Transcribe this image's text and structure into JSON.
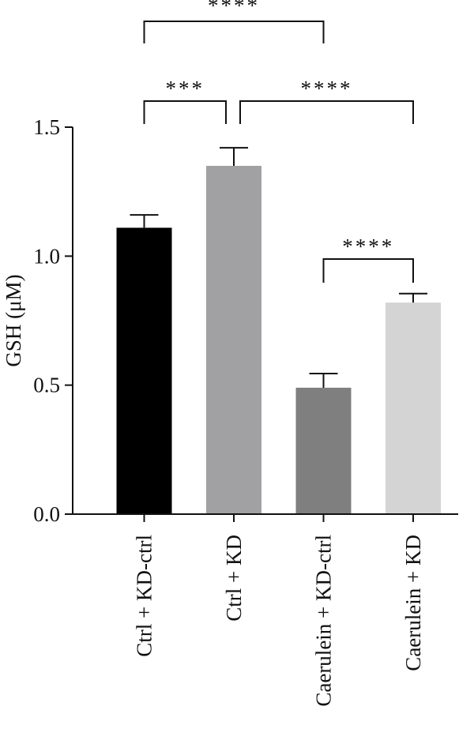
{
  "chart_data": {
    "type": "bar",
    "ylabel": "GSH (μM)",
    "ylim": [
      0,
      1.5
    ],
    "yticks": [
      0.0,
      0.5,
      1.0,
      1.5
    ],
    "ytick_labels": [
      "0.0",
      "0.5",
      "1.0",
      "1.5"
    ],
    "categories": [
      "Ctrl + KD-ctrl",
      "Ctrl + KD",
      "Caerulein + KD-ctrl",
      "Caerulein + KD"
    ],
    "values": [
      1.11,
      1.35,
      0.49,
      0.82
    ],
    "errors": [
      0.05,
      0.07,
      0.055,
      0.035
    ],
    "colors": [
      "#000000",
      "#a1a1a3",
      "#7f7f7f",
      "#d4d4d4"
    ],
    "significance": [
      {
        "from": 0,
        "to": 2,
        "label": "****"
      },
      {
        "from": 0,
        "to": 1,
        "label": "***"
      },
      {
        "from": 1,
        "to": 3,
        "label": "****"
      },
      {
        "from": 2,
        "to": 3,
        "label": "****"
      }
    ]
  }
}
